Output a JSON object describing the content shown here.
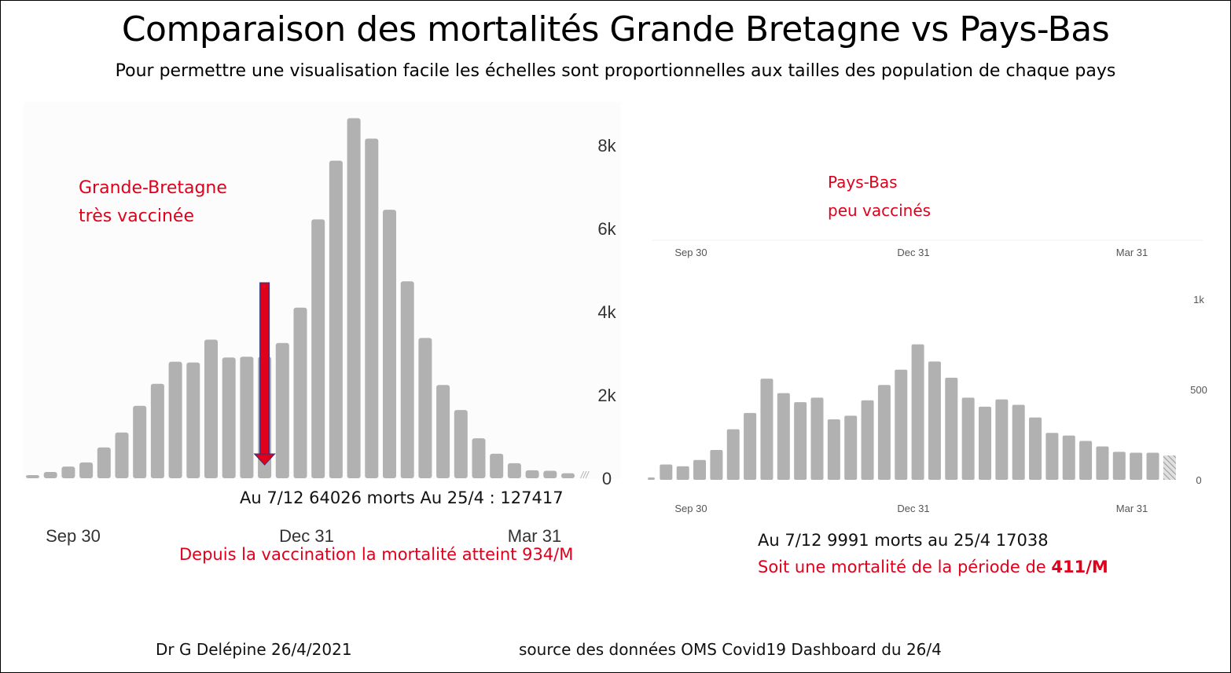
{
  "title": "Comparaison des mortalités Grande Bretagne vs Pays-Bas",
  "subtitle": "Pour permettre une visualisation facile les échelles sont proportionnelles aux tailles des population de chaque pays",
  "gb": {
    "label_line1": "Grande-Bretagne",
    "label_line2": "très vaccinée",
    "summary": "Au 7/12 64026 morts Au 25/4 : 127417",
    "note": "Depuis la vaccination la mortalité atteint  934/M"
  },
  "nl": {
    "label_line1": "Pays-Bas",
    "label_line2": "peu vaccinés",
    "summary": "Au 7/12 9991 morts au 25/4 17038",
    "note_prefix": "Soit une mortalité de la période de ",
    "note_value": "411/M"
  },
  "footer": {
    "author": "Dr G Delépine 26/4/2021",
    "source": "source des données OMS Covid19 Dashboard du 26/4"
  },
  "colors": {
    "bar": "#b1b1b1",
    "highlight": "#e0001b",
    "arrow_border": "#2a3580"
  },
  "chart_data": [
    {
      "type": "bar",
      "name": "Grande-Bretagne weekly deaths",
      "title": "Grande-Bretagne",
      "xlabel": "",
      "ylabel": "",
      "x_tick_labels": [
        "Sep 30",
        "Dec 31",
        "Mar 31"
      ],
      "y_tick_labels": [
        "0",
        "2k",
        "4k",
        "6k",
        "8k"
      ],
      "y_ticks": [
        0,
        2000,
        4000,
        6000,
        8000
      ],
      "ylim": [
        0,
        8800
      ],
      "y_axis_side": "right",
      "values": [
        70,
        150,
        280,
        380,
        740,
        1100,
        1740,
        2270,
        2800,
        2780,
        3330,
        2900,
        2920,
        2920,
        3250,
        4100,
        6220,
        7630,
        8650,
        8160,
        6450,
        4730,
        3370,
        2240,
        1640,
        960,
        590,
        360,
        190,
        180,
        120
      ],
      "partial_last_week": true,
      "annotation": {
        "type": "arrow",
        "at_index": 13,
        "color": "#e0001b",
        "meaning": "start of vaccination (7/12)"
      }
    },
    {
      "type": "bar",
      "name": "Pays-Bas weekly deaths",
      "title": "Pays-Bas",
      "xlabel": "",
      "ylabel": "",
      "x_tick_labels": [
        "Sep 30",
        "Dec 31",
        "Mar 31"
      ],
      "y_tick_labels": [
        "0",
        "500",
        "1k"
      ],
      "y_ticks": [
        0,
        500,
        1000
      ],
      "ylim": [
        0,
        1000
      ],
      "y_axis_side": "right",
      "values": [
        10,
        85,
        75,
        110,
        165,
        280,
        370,
        560,
        480,
        430,
        455,
        335,
        355,
        440,
        525,
        610,
        750,
        655,
        565,
        455,
        405,
        445,
        415,
        345,
        260,
        245,
        215,
        185,
        155,
        150,
        150
      ],
      "partial_last_week": true,
      "partial_value": 135
    }
  ]
}
